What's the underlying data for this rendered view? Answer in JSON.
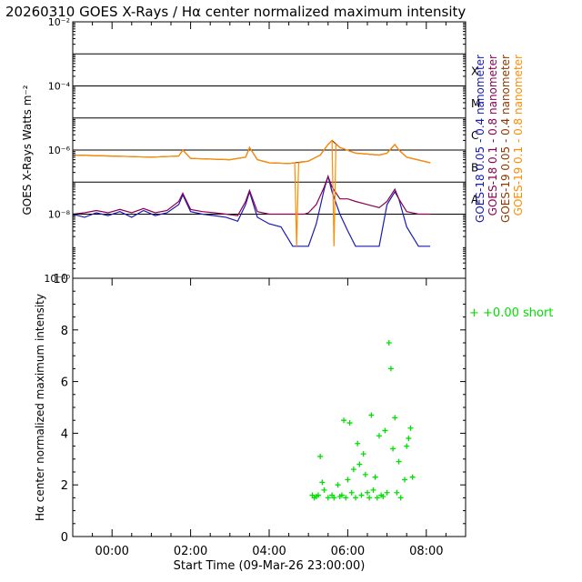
{
  "title": "20260310 GOES X-Rays / Hα center normalized maximum intensity",
  "colors": {
    "goes18_short": "#1a1ab4",
    "goes18_long": "#8b0050",
    "goes19_short": "#8b3a00",
    "goes19_long": "#ff8c00",
    "halpha": "#00e000",
    "axis": "#000000"
  },
  "chart_data": [
    {
      "type": "line",
      "title": "GOES X-Rays",
      "ylabel": "GOES X-Rays Watts m⁻²",
      "yscale": "log",
      "ylim": [
        1e-10,
        0.01
      ],
      "ytick_labels": [
        "10⁻¹⁰",
        "10⁻⁸",
        "10⁻⁶",
        "10⁻⁴",
        "10⁻²"
      ],
      "ytick_values": [
        1e-10,
        1e-08,
        1e-06,
        0.0001,
        0.01
      ],
      "xlim": [
        -1.0,
        9.0
      ],
      "class_lines": [
        1e-08,
        1e-07,
        1e-06,
        1e-05,
        0.0001,
        0.001
      ],
      "class_labels": [
        {
          "label": "A",
          "value": 3e-08
        },
        {
          "label": "B",
          "value": 3e-07
        },
        {
          "label": "C",
          "value": 3e-06
        },
        {
          "label": "M",
          "value": 3e-05
        },
        {
          "label": "X",
          "value": 0.0003
        }
      ],
      "legend": [
        {
          "label": "GOES-18 0.05 - 0.4 nanometer",
          "color": "#1a1ab4"
        },
        {
          "label": "GOES-18 0.1 - 0.8 nanometer",
          "color": "#8b0050"
        },
        {
          "label": "GOES-19 0.05 - 0.4 nanometer",
          "color": "#8b3a00"
        },
        {
          "label": "GOES-19 0.1 - 0.8 nanometer",
          "color": "#ff8c00"
        }
      ],
      "series": [
        {
          "name": "GOES-18 0.05 - 0.4 nanometer",
          "color": "#1a1ab4",
          "x": [
            -1.0,
            -0.7,
            -0.4,
            -0.1,
            0.2,
            0.5,
            0.8,
            1.1,
            1.4,
            1.7,
            1.8,
            2.0,
            2.3,
            2.6,
            2.9,
            3.2,
            3.4,
            3.5,
            3.7,
            4.0,
            4.3,
            4.6,
            4.9,
            5.0,
            5.2,
            5.4,
            5.5,
            5.6,
            5.8,
            6.0,
            6.2,
            6.5,
            6.8,
            7.0,
            7.2,
            7.3,
            7.5,
            7.8,
            8.1
          ],
          "y": [
            1e-08,
            8e-09,
            1.1e-08,
            9e-09,
            1.2e-08,
            8e-09,
            1.3e-08,
            9e-09,
            1.1e-08,
            2e-08,
            4e-08,
            1.2e-08,
            1e-08,
            9e-09,
            8e-09,
            6e-09,
            2e-08,
            5e-08,
            8e-09,
            5e-09,
            4e-09,
            1e-09,
            1e-09,
            1e-09,
            5e-09,
            6e-08,
            1.5e-07,
            5e-08,
            1e-08,
            3e-09,
            1e-09,
            1e-09,
            1e-09,
            2e-08,
            5e-08,
            3e-08,
            4e-09,
            1e-09,
            1e-09
          ]
        },
        {
          "name": "GOES-18 0.1 - 0.8 nanometer",
          "color": "#8b0050",
          "x": [
            -1.0,
            -0.7,
            -0.4,
            -0.1,
            0.2,
            0.5,
            0.8,
            1.1,
            1.4,
            1.7,
            1.8,
            2.0,
            2.3,
            2.6,
            2.9,
            3.2,
            3.4,
            3.5,
            3.7,
            4.0,
            4.3,
            4.6,
            4.9,
            5.0,
            5.2,
            5.4,
            5.5,
            5.6,
            5.8,
            6.0,
            6.2,
            6.5,
            6.8,
            7.0,
            7.2,
            7.3,
            7.5,
            7.8,
            8.1
          ],
          "y": [
            1e-08,
            1.1e-08,
            1.3e-08,
            1.1e-08,
            1.4e-08,
            1.1e-08,
            1.5e-08,
            1.1e-08,
            1.3e-08,
            2.5e-08,
            4.5e-08,
            1.4e-08,
            1.2e-08,
            1.1e-08,
            1e-08,
            9e-09,
            2.5e-08,
            5.5e-08,
            1.2e-08,
            1e-08,
            1e-08,
            1e-08,
            1e-08,
            1.1e-08,
            2e-08,
            7e-08,
            1.5e-07,
            7e-08,
            3e-08,
            3e-08,
            2.5e-08,
            2e-08,
            1.6e-08,
            2.5e-08,
            6e-08,
            3e-08,
            1.2e-08,
            1e-08,
            1e-08
          ]
        },
        {
          "name": "GOES-19 0.05 - 0.4 nanometer",
          "color": "#8b3a00",
          "x": [
            -1.0,
            0.0,
            1.0,
            1.7,
            1.8,
            2.0,
            3.0,
            3.4,
            3.5,
            3.7,
            4.0,
            4.5,
            5.0,
            5.3,
            5.5,
            5.6,
            5.8,
            6.2,
            6.8,
            7.0,
            7.2,
            7.3,
            7.5,
            8.1
          ],
          "y": [
            7e-07,
            6.5e-07,
            6e-07,
            6.5e-07,
            1e-06,
            5.5e-07,
            5e-07,
            6e-07,
            1.2e-06,
            5e-07,
            4e-07,
            3.8e-07,
            4.5e-07,
            7e-07,
            1.5e-06,
            2e-06,
            1.2e-06,
            8e-07,
            7e-07,
            8e-07,
            1.5e-06,
            1e-06,
            6e-07,
            4e-07
          ]
        },
        {
          "name": "GOES-19 0.1 - 0.8 nanometer",
          "color": "#ff8c00",
          "x": [
            -1.0,
            0.0,
            1.0,
            1.7,
            1.8,
            2.0,
            3.0,
            3.4,
            3.5,
            3.7,
            4.0,
            4.5,
            4.65,
            4.7,
            4.75,
            5.0,
            5.3,
            5.5,
            5.6,
            5.65,
            5.7,
            5.8,
            6.2,
            6.8,
            7.0,
            7.2,
            7.3,
            7.5,
            8.1
          ],
          "y": [
            7e-07,
            6.5e-07,
            6e-07,
            6.5e-07,
            1e-06,
            5.5e-07,
            5e-07,
            6e-07,
            1.2e-06,
            5e-07,
            4e-07,
            3.8e-07,
            4e-07,
            1e-09,
            4e-07,
            4.5e-07,
            7e-07,
            1.5e-06,
            2e-06,
            1e-09,
            1.5e-06,
            1.2e-06,
            8e-07,
            7e-07,
            8e-07,
            1.5e-06,
            1e-06,
            6e-07,
            4e-07
          ]
        }
      ]
    },
    {
      "type": "scatter",
      "title": "Hα center normalized maximum intensity",
      "ylabel": "Hα center normalized maximum intensity",
      "xlabel": "Start Time (09-Mar-26 23:00:00)",
      "xlim": [
        -1.0,
        9.0
      ],
      "ylim": [
        0,
        10
      ],
      "yticks": [
        0,
        2,
        4,
        6,
        8,
        10
      ],
      "xtick_values": [
        0,
        2,
        4,
        6,
        8
      ],
      "xtick_labels": [
        "00:00",
        "02:00",
        "04:00",
        "06:00",
        "08:00"
      ],
      "legend": [
        {
          "label": "+0.00 short",
          "marker": "+",
          "color": "#00e000"
        }
      ],
      "series": [
        {
          "name": "+0.00 short",
          "marker": "+",
          "color": "#00e000",
          "x": [
            5.1,
            5.15,
            5.2,
            5.25,
            5.3,
            5.35,
            5.4,
            5.5,
            5.6,
            5.65,
            5.75,
            5.8,
            5.85,
            5.9,
            5.95,
            6.0,
            6.05,
            6.1,
            6.15,
            6.2,
            6.25,
            6.3,
            6.35,
            6.4,
            6.45,
            6.5,
            6.55,
            6.6,
            6.65,
            6.7,
            6.75,
            6.8,
            6.85,
            6.9,
            6.95,
            7.0,
            7.05,
            7.1,
            7.15,
            7.2,
            7.25,
            7.3,
            7.35,
            7.45,
            7.5,
            7.55,
            7.6,
            7.65
          ],
          "y": [
            1.6,
            1.5,
            1.55,
            1.6,
            3.1,
            2.1,
            1.8,
            1.5,
            1.6,
            1.5,
            2.0,
            1.55,
            1.6,
            4.5,
            1.5,
            2.2,
            4.4,
            1.7,
            2.6,
            1.5,
            3.6,
            2.8,
            1.6,
            3.2,
            2.4,
            1.7,
            1.5,
            4.7,
            1.8,
            2.3,
            1.5,
            3.9,
            1.6,
            1.55,
            4.1,
            1.7,
            7.5,
            6.5,
            3.4,
            4.6,
            1.7,
            2.9,
            1.5,
            2.2,
            3.5,
            3.8,
            4.2,
            2.3
          ]
        }
      ]
    }
  ]
}
